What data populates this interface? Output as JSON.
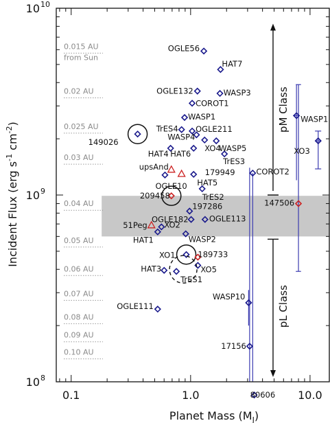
{
  "chart_data": {
    "type": "scatter",
    "xlabel": "Planet Mass (M",
    "xlabel_sub": "J",
    "xlabel_end": ")",
    "ylabel": "Incident Flux (erg s",
    "ylabel_sup1": "-1",
    "ylabel_mid": " cm",
    "ylabel_sup2": "-2",
    "ylabel_end": ")",
    "x_log": true,
    "y_log": true,
    "xlim": [
      0.075,
      14.5
    ],
    "ylim": [
      100000000.0,
      10000000000.0
    ],
    "x_ticks": [
      {
        "value": 0.1,
        "label": "0.1"
      },
      {
        "value": 1.0,
        "label": "1.0"
      },
      {
        "value": 10.0,
        "label": "10.0"
      }
    ],
    "y_ticks": [
      {
        "value": 100000000.0,
        "base": "10",
        "exp": "8"
      },
      {
        "value": 1000000000.0,
        "base": "10",
        "exp": "9"
      },
      {
        "value": 10000000000.0,
        "base": "10",
        "exp": "10"
      }
    ],
    "shaded_band": {
      "y_low": 600000000.0,
      "y_high": 990000000.0,
      "x_start": 0.18,
      "color": "#c8c8c8"
    },
    "au_scale": [
      {
        "au_label": "0.015 AU",
        "flux": 5900000000.0
      },
      {
        "au_label": "from Sun",
        "flux": 5900000000.0,
        "second_line": true
      },
      {
        "au_label": "0.02 AU",
        "flux": 3400000000.0
      },
      {
        "au_label": "0.025 AU",
        "flux": 2200000000.0
      },
      {
        "au_label": "0.03 AU",
        "flux": 1500000000.0
      },
      {
        "au_label": "0.04 AU",
        "flux": 850000000.0
      },
      {
        "au_label": "0.05 AU",
        "flux": 540000000.0
      },
      {
        "au_label": "0.06 AU",
        "flux": 380000000.0
      },
      {
        "au_label": "0.07 AU",
        "flux": 280000000.0
      },
      {
        "au_label": "0.08 AU",
        "flux": 210000000.0
      },
      {
        "au_label": "0.09 AU",
        "flux": 168000000.0
      },
      {
        "au_label": "0.10 AU",
        "flux": 136000000.0
      }
    ],
    "class_labels": {
      "pM": "pM Class",
      "pL": "pL Class",
      "boundary_flux": 1000000000.0,
      "arrow_top_flux": 8200000000.0,
      "arrow_bottom_flux": 107000000.0,
      "x": 4.9
    },
    "points": [
      {
        "name": "OGLE56",
        "x": 1.29,
        "y": 5900000000.0,
        "color": "#1a1a8c",
        "marker": "diamond",
        "label_dx": -6,
        "label_dy": -4,
        "anchor": "end"
      },
      {
        "name": "HAT7",
        "x": 1.78,
        "y": 4700000000.0,
        "color": "#1a1a8c",
        "marker": "diamond",
        "label_dx": 2,
        "label_dy": -8,
        "anchor": "start"
      },
      {
        "name": "OGLE132",
        "x": 1.14,
        "y": 3600000000.0,
        "color": "#1a1a8c",
        "marker": "diamond",
        "label_dx": -6,
        "label_dy": 0,
        "anchor": "end"
      },
      {
        "name": "WASP3",
        "x": 1.76,
        "y": 3500000000.0,
        "color": "#1a1a8c",
        "marker": "diamond",
        "label_dx": 5,
        "label_dy": -1,
        "anchor": "start"
      },
      {
        "name": "COROT1",
        "x": 1.03,
        "y": 3100000000.0,
        "color": "#1a1a8c",
        "marker": "diamond",
        "label_dx": 5,
        "label_dy": 0,
        "anchor": "start"
      },
      {
        "name": "WASP1",
        "x": 0.89,
        "y": 2600000000.0,
        "color": "#1a1a8c",
        "marker": "diamond",
        "label_dx": 5,
        "label_dy": -1,
        "anchor": "start"
      },
      {
        "name": "TrES4",
        "x": 0.84,
        "y": 2240000000.0,
        "color": "#1a1a8c",
        "marker": "diamond",
        "label_dx": -5,
        "label_dy": -1,
        "anchor": "end"
      },
      {
        "name": "WASP4",
        "x": 1.12,
        "y": 2100000000.0,
        "color": "#1a1a8c",
        "marker": "diamond",
        "label_dx": -2,
        "label_dy": 3,
        "anchor": "end"
      },
      {
        "name": "OGLE211",
        "x": 1.03,
        "y": 2200000000.0,
        "color": "#1a1a8c",
        "marker": "diamond",
        "label_dx": 5,
        "label_dy": -3,
        "anchor": "start"
      },
      {
        "name": "149026",
        "x": 0.36,
        "y": 2120000000.0,
        "color": "#1a1a8c",
        "marker": "diamond",
        "circled": true,
        "label_dx": -28,
        "label_dy": 12,
        "anchor": "end"
      },
      {
        "name": "XO4",
        "x": 1.31,
        "y": 1970000000.0,
        "color": "#1a1a8c",
        "marker": "diamond",
        "label_dx": 0,
        "label_dy": 12,
        "anchor": "start"
      },
      {
        "name": "WASP5",
        "x": 1.64,
        "y": 1950000000.0,
        "color": "#1a1a8c",
        "marker": "diamond",
        "label_dx": 4,
        "label_dy": 11,
        "anchor": "start"
      },
      {
        "name": "HAT4",
        "x": 0.68,
        "y": 1780000000.0,
        "color": "#1a1a8c",
        "marker": "diamond",
        "label_dx": -3,
        "label_dy": 8,
        "anchor": "end"
      },
      {
        "name": "HAT6",
        "x": 1.06,
        "y": 1780000000.0,
        "color": "#1a1a8c",
        "marker": "diamond",
        "label_dx": -4,
        "label_dy": 8,
        "anchor": "end"
      },
      {
        "name": "TrES3",
        "x": 1.92,
        "y": 1660000000.0,
        "color": "#1a1a8c",
        "marker": "diamond",
        "label_dx": -2,
        "label_dy": 11,
        "anchor": "start"
      },
      {
        "name": "upsAnd",
        "x": 0.69,
        "y": 1370000000.0,
        "color": "#cc2222",
        "marker": "triangle",
        "label_dx": -4,
        "label_dy": -4,
        "anchor": "end"
      },
      {
        "name": "179949",
        "x": 0.84,
        "y": 1300000000.0,
        "color": "#cc2222",
        "marker": "triangle",
        "label_dx": 34,
        "label_dy": -2,
        "anchor": "start"
      },
      {
        "name": "HAT5",
        "x": 1.06,
        "y": 1290000000.0,
        "color": "#1a1a8c",
        "marker": "diamond",
        "label_dx": 5,
        "label_dy": 12,
        "anchor": "start"
      },
      {
        "name": "OGLE10",
        "x": 0.61,
        "y": 1280000000.0,
        "color": "#1a1a8c",
        "marker": "diamond",
        "label_dx": -14,
        "label_dy": 16,
        "anchor": "start"
      },
      {
        "name": "COROT2",
        "x": 3.31,
        "y": 1310000000.0,
        "color": "#1a1a8c",
        "marker": "diamond",
        "label_dx": 5,
        "label_dy": -2,
        "anchor": "start"
      },
      {
        "name": "TrES2",
        "x": 1.25,
        "y": 1080000000.0,
        "color": "#1a1a8c",
        "marker": "diamond",
        "label_dx": 0,
        "label_dy": 12,
        "anchor": "start"
      },
      {
        "name": "209458",
        "x": 0.69,
        "y": 990000000.0,
        "color": "#cc2222",
        "marker": "diamond",
        "circled": true,
        "label_dx": -2,
        "label_dy": 0,
        "anchor": "end"
      },
      {
        "name": "147506",
        "x": 8.0,
        "y": 900000000.0,
        "color": "#cc2222",
        "marker": "diamond",
        "label_dx": -6,
        "label_dy": -1,
        "anchor": "end"
      },
      {
        "name": "197286",
        "x": 0.98,
        "y": 820000000.0,
        "color": "#1a1a8c",
        "marker": "diamond",
        "label_dx": 4,
        "label_dy": -7,
        "anchor": "start"
      },
      {
        "name": "OGLE182",
        "x": 1.01,
        "y": 740000000.0,
        "color": "#1a1a8c",
        "marker": "diamond",
        "label_dx": -4,
        "label_dy": 0,
        "anchor": "end"
      },
      {
        "name": "OGLE113",
        "x": 1.32,
        "y": 740000000.0,
        "color": "#1a1a8c",
        "marker": "diamond",
        "label_dx": 6,
        "label_dy": -1,
        "anchor": "start"
      },
      {
        "name": "51Peg",
        "x": 0.47,
        "y": 690000000.0,
        "color": "#cc2222",
        "marker": "triangle",
        "label_dx": -6,
        "label_dy": 0,
        "anchor": "end"
      },
      {
        "name": "XO2",
        "x": 0.57,
        "y": 675000000.0,
        "color": "#1a1a8c",
        "marker": "diamond",
        "label_dx": 4,
        "label_dy": -3,
        "anchor": "start"
      },
      {
        "name": "HAT1",
        "x": 0.53,
        "y": 635000000.0,
        "color": "#1a1a8c",
        "marker": "diamond",
        "label_dx": -6,
        "label_dy": 12,
        "anchor": "end"
      },
      {
        "name": "WASP2",
        "x": 0.91,
        "y": 620000000.0,
        "color": "#1a1a8c",
        "marker": "diamond",
        "label_dx": 4,
        "label_dy": 8,
        "anchor": "start"
      },
      {
        "name": "XO1",
        "x": 0.92,
        "y": 480000000.0,
        "color": "#1a1a8c",
        "marker": "diamond",
        "circled": true,
        "label_dx": -16,
        "label_dy": 1,
        "anchor": "end"
      },
      {
        "name": "189733",
        "x": 1.15,
        "y": 465000000.0,
        "color": "#cc2222",
        "marker": "diamond",
        "label_dx": 0,
        "label_dy": -4,
        "anchor": "start"
      },
      {
        "name": "XO5",
        "x": 1.15,
        "y": 420000000.0,
        "color": "#1a1a8c",
        "marker": "diamond",
        "label_dx": 4,
        "label_dy": 6,
        "anchor": "start"
      },
      {
        "name": "HAT3",
        "x": 0.6,
        "y": 395000000.0,
        "color": "#1a1a8c",
        "marker": "diamond",
        "label_dx": -4,
        "label_dy": -2,
        "anchor": "end"
      },
      {
        "name": "TrES1",
        "x": 0.76,
        "y": 390000000.0,
        "color": "#1a1a8c",
        "marker": "diamond",
        "dash_circle": true,
        "label_dx": 6,
        "label_dy": 12,
        "anchor": "start"
      },
      {
        "name": "WASP10",
        "x": 3.06,
        "y": 265000000.0,
        "color": "#1a1a8c",
        "marker": "diamond",
        "label_dx": -5,
        "label_dy": -9,
        "anchor": "end"
      },
      {
        "name": "OGLE111",
        "x": 0.53,
        "y": 245000000.0,
        "color": "#1a1a8c",
        "marker": "diamond",
        "label_dx": -6,
        "label_dy": -4,
        "anchor": "end"
      },
      {
        "name": "17156",
        "x": 3.12,
        "y": 155000000.0,
        "color": "#1a1a8c",
        "marker": "diamond",
        "label_dx": -5,
        "label_dy": 0,
        "anchor": "end"
      },
      {
        "name": "80606",
        "x": 3.41,
        "y": 85000000.0,
        "color": "#1a1a8c",
        "marker": "diamond",
        "label_dx": -6,
        "label_dy": 0,
        "anchor": "start"
      },
      {
        "name": "WASP1",
        "x": 7.7,
        "y": 2660000000.0,
        "color": "#1a1a8c",
        "marker": "diamond",
        "label_dx": 6,
        "label_dy": 5,
        "anchor": "start"
      },
      {
        "name": "XO3",
        "x": 11.7,
        "y": 1950000000.0,
        "color": "#1a1a8c",
        "marker": "diamond",
        "label_dx": -12,
        "label_dy": 15,
        "anchor": "end"
      }
    ],
    "error_bars_y": [
      {
        "x": 3.06,
        "y_low": 200000000.0,
        "y_high": 310000000.0
      },
      {
        "x": 7.7,
        "y_low": 1200000000.0,
        "y_high": 3900000000.0
      },
      {
        "x": 11.7,
        "y_low": 1380000000.0,
        "y_high": 2200000000.0
      },
      {
        "x": 8.0,
        "y_low": 390000000.0,
        "y_high": 3900000000.0
      }
    ],
    "error_bars_x": [
      {
        "y": 2660000000.0,
        "x_low": 7.2,
        "x_high": 8.2
      },
      {
        "y": 1950000000.0,
        "x_low": 11.0,
        "x_high": 12.4
      },
      {
        "y": 3900000000.0,
        "x_low": 7.6,
        "x_high": 8.4
      },
      {
        "y": 390000000.0,
        "x_low": 7.6,
        "x_high": 8.4
      },
      {
        "y": 1380000000.0,
        "x_low": 11.0,
        "x_high": 12.4
      },
      {
        "y": 2200000000.0,
        "x_low": 11.0,
        "x_high": 12.4
      }
    ],
    "lower_limit_lines": [
      {
        "x": 3.12,
        "y_from": 1400000000.0,
        "y_to": 100000000.0
      },
      {
        "x": 3.31,
        "y_from": 1310000000.0,
        "y_to": 100000000.0
      }
    ]
  }
}
